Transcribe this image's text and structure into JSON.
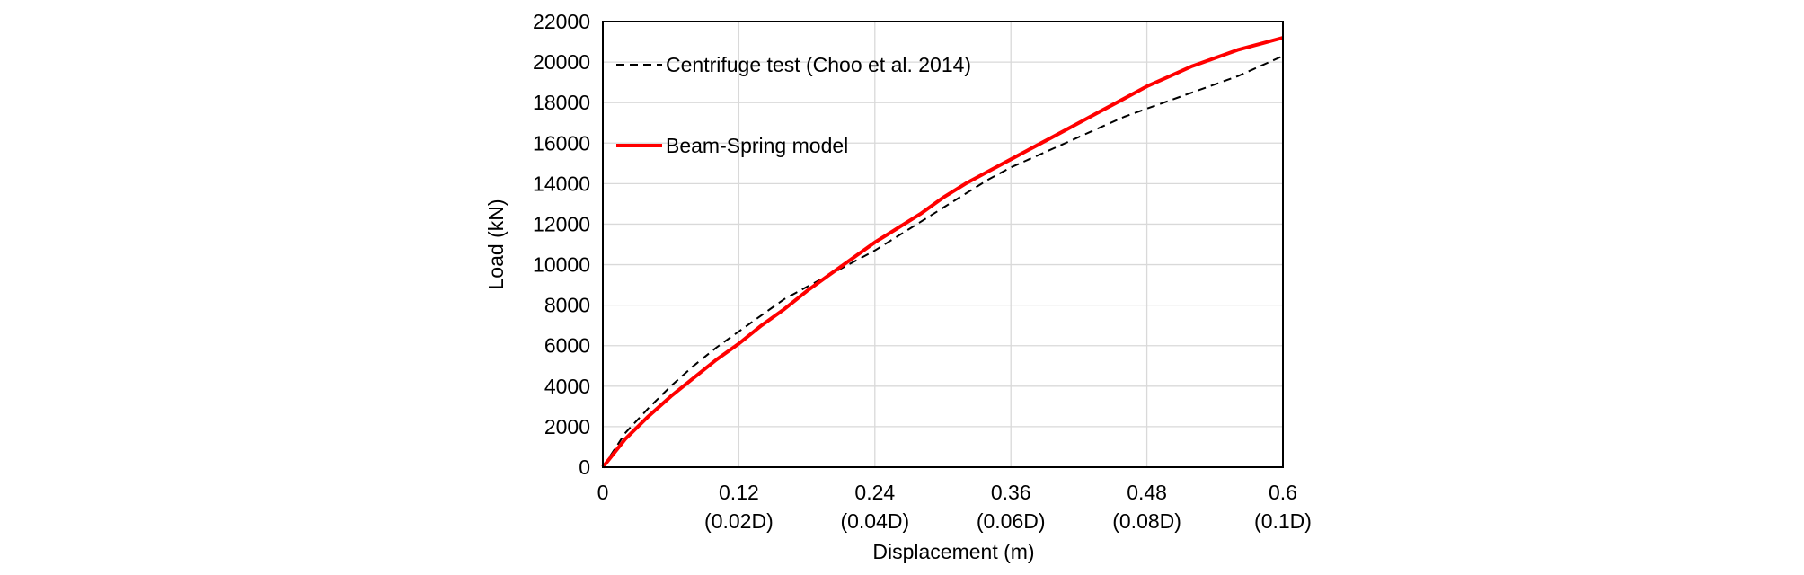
{
  "chart_data": {
    "type": "line",
    "title": "",
    "xlabel": "Displacement (m)",
    "ylabel": "Load (kN)",
    "xlim": [
      0,
      0.6
    ],
    "ylim": [
      0,
      22000
    ],
    "grid": true,
    "legend_position": "top-left",
    "x_ticks": [
      {
        "value": 0,
        "label": "0",
        "sublabel": ""
      },
      {
        "value": 0.12,
        "label": "0.12",
        "sublabel": "(0.02D)"
      },
      {
        "value": 0.24,
        "label": "0.24",
        "sublabel": "(0.04D)"
      },
      {
        "value": 0.36,
        "label": "0.36",
        "sublabel": "(0.06D)"
      },
      {
        "value": 0.48,
        "label": "0.48",
        "sublabel": "(0.08D)"
      },
      {
        "value": 0.6,
        "label": "0.6",
        "sublabel": "(0.1D)"
      }
    ],
    "y_ticks": [
      {
        "value": 0,
        "label": "0"
      },
      {
        "value": 2000,
        "label": "2000"
      },
      {
        "value": 4000,
        "label": "4000"
      },
      {
        "value": 6000,
        "label": "6000"
      },
      {
        "value": 8000,
        "label": "8000"
      },
      {
        "value": 10000,
        "label": "10000"
      },
      {
        "value": 12000,
        "label": "12000"
      },
      {
        "value": 14000,
        "label": "14000"
      },
      {
        "value": 16000,
        "label": "16000"
      },
      {
        "value": 18000,
        "label": "18000"
      },
      {
        "value": 20000,
        "label": "20000"
      },
      {
        "value": 22000,
        "label": "22000"
      }
    ],
    "series": [
      {
        "name": "Centrifuge test (Choo et al. 2014)",
        "color": "#000000",
        "dash": true,
        "x": [
          0,
          0.02,
          0.04,
          0.06,
          0.08,
          0.1,
          0.12,
          0.14,
          0.16,
          0.18,
          0.2,
          0.22,
          0.24,
          0.26,
          0.28,
          0.3,
          0.32,
          0.34,
          0.36,
          0.38,
          0.4,
          0.42,
          0.44,
          0.46,
          0.48,
          0.5,
          0.52,
          0.54,
          0.56,
          0.58,
          0.6
        ],
        "y": [
          0,
          1700,
          2900,
          4000,
          5000,
          5900,
          6700,
          7500,
          8300,
          8900,
          9500,
          10100,
          10700,
          11400,
          12100,
          12800,
          13500,
          14200,
          14800,
          15300,
          15800,
          16300,
          16800,
          17300,
          17700,
          18100,
          18500,
          18900,
          19300,
          19800,
          20300
        ]
      },
      {
        "name": "Beam-Spring model",
        "color": "#ff0000",
        "dash": false,
        "x": [
          0,
          0.02,
          0.04,
          0.06,
          0.08,
          0.1,
          0.12,
          0.14,
          0.16,
          0.18,
          0.2,
          0.22,
          0.24,
          0.26,
          0.28,
          0.3,
          0.32,
          0.34,
          0.36,
          0.38,
          0.4,
          0.42,
          0.44,
          0.46,
          0.48,
          0.5,
          0.52,
          0.54,
          0.56,
          0.58,
          0.6
        ],
        "y": [
          0,
          1400,
          2500,
          3500,
          4400,
          5300,
          6100,
          7000,
          7800,
          8700,
          9500,
          10300,
          11100,
          11800,
          12500,
          13300,
          14000,
          14600,
          15200,
          15800,
          16400,
          17000,
          17600,
          18200,
          18800,
          19300,
          19800,
          20200,
          20600,
          20900,
          21200
        ]
      }
    ]
  }
}
